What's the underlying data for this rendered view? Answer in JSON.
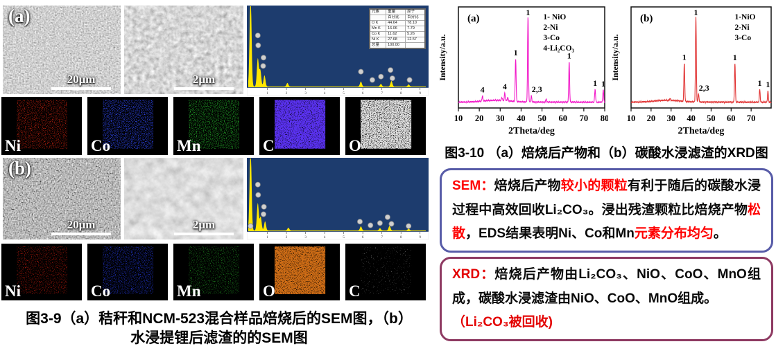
{
  "fig39": {
    "caption_line1": "图3-9（a）秸秆和NCM-523混合样品焙烧后的SEM图，（b）",
    "caption_line2": "水浸提锂后滤渣的的SEM图",
    "panel_a": {
      "label": "(a)",
      "sem1_scale": "20μm",
      "sem2_scale": "2μm",
      "maps": [
        {
          "label": "Ni",
          "color": "#c02010",
          "density": 0.45
        },
        {
          "label": "Co",
          "color": "#2a3fd8",
          "density": 0.5
        },
        {
          "label": "Mn",
          "color": "#1e8c22",
          "density": 0.5
        },
        {
          "label": "C",
          "color": "#5a30f0",
          "density": 0.97
        },
        {
          "label": "O",
          "color": "#e2e2e2",
          "density": 0.9
        }
      ]
    },
    "panel_b": {
      "label": "(b)",
      "sem1_scale": "20μm",
      "sem2_scale": "2μm",
      "maps": [
        {
          "label": "Ni",
          "color": "#a0160b",
          "density": 0.4
        },
        {
          "label": "Co",
          "color": "#1d2db4",
          "density": 0.45
        },
        {
          "label": "Mn",
          "color": "#1a7a1c",
          "density": 0.4
        },
        {
          "label": "O",
          "color": "#cf6d16",
          "density": 0.95
        },
        {
          "label": "C",
          "color": "#b0b0b0",
          "density": 0.08
        }
      ]
    }
  },
  "eds": {
    "bg": "#1d3c6e",
    "peak_color": "#ffe600",
    "axis_ticks": [
      1,
      2,
      3,
      4,
      5,
      6,
      7,
      8,
      9
    ],
    "a": {
      "peaks": [
        [
          0.12,
          1.9
        ],
        [
          0.5,
          0.55
        ],
        [
          0.63,
          0.32
        ],
        [
          0.85,
          0.22
        ],
        [
          2.05,
          0.07
        ],
        [
          5.9,
          0.1
        ],
        [
          6.95,
          0.05
        ],
        [
          7.5,
          0.11
        ],
        [
          8.4,
          0.04
        ]
      ],
      "markers": [
        [
          0.5,
          0.62
        ],
        [
          0.52,
          0.5
        ],
        [
          0.8,
          0.35
        ],
        [
          0.78,
          0.25
        ],
        [
          5.9,
          0.18
        ],
        [
          6.5,
          0.08
        ],
        [
          6.95,
          0.12
        ],
        [
          7.45,
          0.2
        ],
        [
          7.55,
          0.1
        ],
        [
          8.45,
          0.08
        ]
      ]
    },
    "b": {
      "peaks": [
        [
          0.12,
          1.9
        ],
        [
          0.5,
          0.6
        ],
        [
          0.65,
          0.3
        ],
        [
          0.88,
          0.2
        ],
        [
          2.1,
          0.06
        ],
        [
          5.9,
          0.09
        ],
        [
          6.9,
          0.05
        ],
        [
          7.4,
          0.1
        ],
        [
          8.4,
          0.04
        ]
      ],
      "markers": [
        [
          0.12,
          0.06
        ],
        [
          0.5,
          0.62
        ],
        [
          0.52,
          0.48
        ],
        [
          0.82,
          0.32
        ],
        [
          0.8,
          0.22
        ],
        [
          5.85,
          0.12
        ],
        [
          6.4,
          0.07
        ],
        [
          6.9,
          0.1
        ],
        [
          7.3,
          0.18
        ],
        [
          7.5,
          0.09
        ],
        [
          8.4,
          0.06
        ]
      ]
    },
    "table": {
      "headers_top": [
        "元素",
        "重量",
        "原子"
      ],
      "headers_sub": [
        "",
        "百分比",
        "百分比"
      ],
      "rows": [
        [
          "O K",
          "44.64",
          "78.10"
        ],
        [
          "Mn K",
          "16.06",
          "7.79"
        ],
        [
          "Co K",
          "11.62",
          "5.26"
        ],
        [
          "Ni K",
          "27.68",
          "12.57"
        ],
        [
          "总量",
          "100.00",
          ""
        ]
      ]
    }
  },
  "fig310": {
    "caption": "图3-10 （a）焙烧后产物和（b）碳酸水浸滤渣的XRD图"
  },
  "chart_data": [
    {
      "type": "line",
      "panel": "(a)",
      "xlabel": "2Theta/deg",
      "ylabel": "Intensity/a.u.",
      "xlim": [
        10,
        80
      ],
      "xticks": [
        10,
        20,
        30,
        40,
        50,
        60,
        70,
        80
      ],
      "line_color": "#f219c9",
      "legend": [
        "1- NiO",
        "2-Ni",
        "3-Co",
        "4-Li₂CO₃"
      ],
      "legend_fx": 0.58,
      "grid": false,
      "peaks": [
        {
          "x": 21.5,
          "h": 0.06,
          "label": "4"
        },
        {
          "x": 30.8,
          "h": 0.035
        },
        {
          "x": 32.2,
          "h": 0.09,
          "label": "4"
        },
        {
          "x": 33.6,
          "h": 0.04
        },
        {
          "x": 37.4,
          "h": 0.5,
          "label": "1"
        },
        {
          "x": 43.3,
          "h": 1.0,
          "label": "1"
        },
        {
          "x": 44.9,
          "h": 0.07,
          "label": "2,3",
          "dx": 8
        },
        {
          "x": 52.0,
          "h": 0.035
        },
        {
          "x": 63.0,
          "h": 0.47,
          "label": "1"
        },
        {
          "x": 75.4,
          "h": 0.15,
          "label": "1"
        },
        {
          "x": 79.3,
          "h": 0.14,
          "label": "1"
        }
      ]
    },
    {
      "type": "line",
      "panel": "(b)",
      "xlabel": "2Theta/deg",
      "ylabel": "Intensity/a.u.",
      "xlim": [
        10,
        80
      ],
      "xticks": [
        10,
        20,
        30,
        40,
        50,
        60,
        70
      ],
      "line_color": "#e13434",
      "legend": [
        "1-NiO",
        "2-Ni",
        "3-Co"
      ],
      "legend_fx": 0.74,
      "grid": false,
      "peaks": [
        {
          "x": 29.5,
          "h": 0.02
        },
        {
          "x": 36.6,
          "h": 0.45,
          "label": "1"
        },
        {
          "x": 42.4,
          "h": 1.0,
          "label": "1"
        },
        {
          "x": 43.7,
          "h": 0.1,
          "label": "2,3",
          "dx": 8
        },
        {
          "x": 61.9,
          "h": 0.46,
          "label": "1"
        },
        {
          "x": 74.3,
          "h": 0.15,
          "label": "1"
        },
        {
          "x": 78.4,
          "h": 0.13,
          "label": "1"
        }
      ]
    }
  ],
  "boxes": {
    "sem": {
      "border": "#585ca8",
      "highlight": "#ff0000",
      "segments": [
        {
          "t": "SEM：",
          "red": true
        },
        {
          "t": "焙烧后产物"
        },
        {
          "t": "较小的颗粒",
          "red": true
        },
        {
          "t": "有利于随后的碳酸水浸过程中高效回收Li₂CO₃。浸出残渣颗粒比焙烧产物"
        },
        {
          "t": "松散",
          "red": true
        },
        {
          "t": "，EDS结果表明Ni、Co和Mn"
        },
        {
          "t": "元素分布均匀",
          "red": true
        },
        {
          "t": "。"
        }
      ]
    },
    "xrd": {
      "border": "#8e3a62",
      "highlight": "#e30000",
      "segments": [
        {
          "t": "XRD：",
          "red": true
        },
        {
          "t": "焙烧后产物由Li₂CO₃、NiO、CoO、MnO组成，碳酸水浸滤渣由NiO、CoO、MnO组成。"
        },
        {
          "br": true
        },
        {
          "t": "（Li₂CO₃被回收)",
          "red": true
        }
      ]
    }
  }
}
